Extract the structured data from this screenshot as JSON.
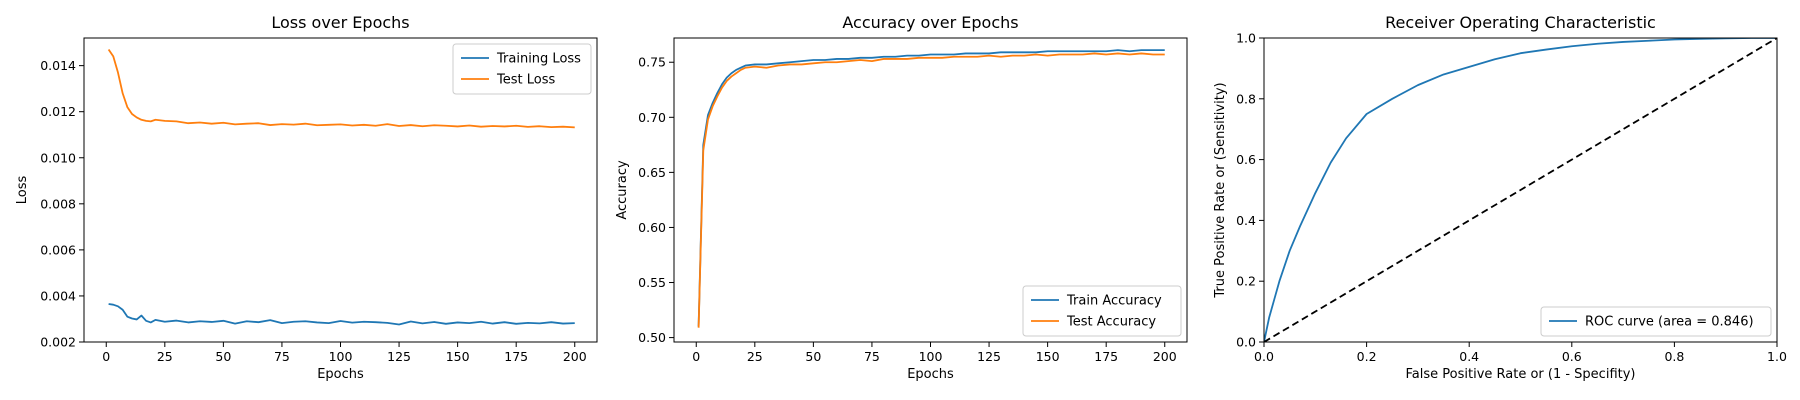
{
  "colors": {
    "blue": "#1f77b4",
    "orange": "#ff7f0e",
    "diag": "#000000"
  },
  "chart_data": [
    {
      "type": "line",
      "title": "Loss over Epochs",
      "xlabel": "Epochs",
      "ylabel": "Loss",
      "xlim": [
        -9.5,
        209.5
      ],
      "ylim": [
        0.002,
        0.0152
      ],
      "xticks": [
        0,
        25,
        50,
        75,
        100,
        125,
        150,
        175,
        200
      ],
      "xtick_labels": [
        "0",
        "25",
        "50",
        "75",
        "100",
        "125",
        "150",
        "175",
        "200"
      ],
      "yticks": [
        0.002,
        0.004,
        0.006,
        0.008,
        0.01,
        0.012,
        0.014
      ],
      "ytick_labels": [
        "0.002",
        "0.004",
        "0.006",
        "0.008",
        "0.010",
        "0.012",
        "0.014"
      ],
      "legend_position": "top-right",
      "series": [
        {
          "name": "Training Loss",
          "color": "blue",
          "x": [
            1,
            3,
            5,
            7,
            9,
            11,
            13,
            15,
            17,
            19,
            21,
            25,
            30,
            35,
            40,
            45,
            50,
            55,
            60,
            65,
            70,
            75,
            80,
            85,
            90,
            95,
            100,
            105,
            110,
            115,
            120,
            125,
            130,
            135,
            140,
            145,
            150,
            155,
            160,
            165,
            170,
            175,
            180,
            185,
            190,
            195,
            200
          ],
          "y": [
            0.00365,
            0.00362,
            0.00355,
            0.0034,
            0.0031,
            0.00302,
            0.00298,
            0.00315,
            0.00292,
            0.00285,
            0.00296,
            0.00288,
            0.00293,
            0.00285,
            0.0029,
            0.00287,
            0.00292,
            0.0028,
            0.0029,
            0.00286,
            0.00295,
            0.00282,
            0.00288,
            0.0029,
            0.00285,
            0.00282,
            0.00291,
            0.00284,
            0.00288,
            0.00286,
            0.00283,
            0.00276,
            0.00289,
            0.00281,
            0.00287,
            0.00279,
            0.00285,
            0.00282,
            0.00288,
            0.0028,
            0.00286,
            0.00279,
            0.00283,
            0.00281,
            0.00286,
            0.0028,
            0.00282
          ]
        },
        {
          "name": "Test Loss",
          "color": "orange",
          "x": [
            1,
            3,
            5,
            7,
            9,
            11,
            13,
            15,
            17,
            19,
            21,
            25,
            30,
            35,
            40,
            45,
            50,
            55,
            60,
            65,
            70,
            75,
            80,
            85,
            90,
            95,
            100,
            105,
            110,
            115,
            120,
            125,
            130,
            135,
            140,
            145,
            150,
            155,
            160,
            165,
            170,
            175,
            180,
            185,
            190,
            195,
            200
          ],
          "y": [
            0.0147,
            0.0144,
            0.0137,
            0.0128,
            0.0122,
            0.0119,
            0.01175,
            0.01165,
            0.0116,
            0.01158,
            0.01165,
            0.0116,
            0.01158,
            0.0115,
            0.01153,
            0.01148,
            0.01152,
            0.01145,
            0.01148,
            0.0115,
            0.01142,
            0.01146,
            0.01144,
            0.01148,
            0.01141,
            0.01143,
            0.01145,
            0.0114,
            0.01143,
            0.01139,
            0.01146,
            0.01138,
            0.01142,
            0.01137,
            0.01141,
            0.01139,
            0.01136,
            0.0114,
            0.01135,
            0.01138,
            0.01136,
            0.01139,
            0.01134,
            0.01137,
            0.01133,
            0.01135,
            0.01132
          ]
        }
      ]
    },
    {
      "type": "line",
      "title": "Accuracy over Epochs",
      "xlabel": "Epochs",
      "ylabel": "Accuracy",
      "xlim": [
        -9.5,
        209.5
      ],
      "ylim": [
        0.496,
        0.772
      ],
      "xticks": [
        0,
        25,
        50,
        75,
        100,
        125,
        150,
        175,
        200
      ],
      "xtick_labels": [
        "0",
        "25",
        "50",
        "75",
        "100",
        "125",
        "150",
        "175",
        "200"
      ],
      "yticks": [
        0.5,
        0.55,
        0.6,
        0.65,
        0.7,
        0.75
      ],
      "ytick_labels": [
        "0.50",
        "0.55",
        "0.60",
        "0.65",
        "0.70",
        "0.75"
      ],
      "legend_position": "lower-right",
      "series": [
        {
          "name": "Train Accuracy",
          "color": "blue",
          "x": [
            1,
            3,
            5,
            7,
            9,
            11,
            13,
            15,
            17,
            19,
            21,
            25,
            30,
            35,
            40,
            45,
            50,
            55,
            60,
            65,
            70,
            75,
            80,
            85,
            90,
            95,
            100,
            105,
            110,
            115,
            120,
            125,
            130,
            135,
            140,
            145,
            150,
            155,
            160,
            165,
            170,
            175,
            180,
            185,
            190,
            195,
            200
          ],
          "y": [
            0.51,
            0.675,
            0.702,
            0.713,
            0.722,
            0.73,
            0.736,
            0.74,
            0.743,
            0.745,
            0.747,
            0.748,
            0.748,
            0.749,
            0.75,
            0.751,
            0.752,
            0.752,
            0.753,
            0.753,
            0.754,
            0.754,
            0.755,
            0.755,
            0.756,
            0.756,
            0.757,
            0.757,
            0.757,
            0.758,
            0.758,
            0.758,
            0.759,
            0.759,
            0.759,
            0.759,
            0.76,
            0.76,
            0.76,
            0.76,
            0.76,
            0.76,
            0.761,
            0.76,
            0.761,
            0.761,
            0.761
          ]
        },
        {
          "name": "Test Accuracy",
          "color": "orange",
          "x": [
            1,
            3,
            5,
            7,
            9,
            11,
            13,
            15,
            17,
            19,
            21,
            25,
            30,
            35,
            40,
            45,
            50,
            55,
            60,
            65,
            70,
            75,
            80,
            85,
            90,
            95,
            100,
            105,
            110,
            115,
            120,
            125,
            130,
            135,
            140,
            145,
            150,
            155,
            160,
            165,
            170,
            175,
            180,
            185,
            190,
            195,
            200
          ],
          "y": [
            0.509,
            0.67,
            0.698,
            0.71,
            0.719,
            0.727,
            0.733,
            0.737,
            0.74,
            0.743,
            0.745,
            0.746,
            0.745,
            0.747,
            0.748,
            0.748,
            0.749,
            0.75,
            0.75,
            0.751,
            0.752,
            0.751,
            0.753,
            0.753,
            0.753,
            0.754,
            0.754,
            0.754,
            0.755,
            0.755,
            0.755,
            0.756,
            0.755,
            0.756,
            0.756,
            0.757,
            0.756,
            0.757,
            0.757,
            0.757,
            0.758,
            0.757,
            0.758,
            0.757,
            0.758,
            0.757,
            0.757
          ]
        }
      ]
    },
    {
      "type": "line",
      "title": "Receiver Operating Characteristic",
      "xlabel": "False Positive Rate or (1 - Specifity)",
      "ylabel": "True Positive Rate or (Sensitivity)",
      "xlim": [
        0.0,
        1.0
      ],
      "ylim": [
        0.0,
        1.0
      ],
      "xticks": [
        0.0,
        0.2,
        0.4,
        0.6,
        0.8,
        1.0
      ],
      "xtick_labels": [
        "0.0",
        "0.2",
        "0.4",
        "0.6",
        "0.8",
        "1.0"
      ],
      "yticks": [
        0.0,
        0.2,
        0.4,
        0.6,
        0.8,
        1.0
      ],
      "ytick_labels": [
        "0.0",
        "0.2",
        "0.4",
        "0.6",
        "0.8",
        "1.0"
      ],
      "legend_position": "lower-right",
      "series": [
        {
          "name": "ROC curve (area = 0.846)",
          "color": "blue",
          "x": [
            0.0,
            0.005,
            0.01,
            0.02,
            0.03,
            0.05,
            0.07,
            0.1,
            0.13,
            0.16,
            0.2,
            0.25,
            0.3,
            0.35,
            0.4,
            0.45,
            0.5,
            0.55,
            0.6,
            0.65,
            0.7,
            0.75,
            0.8,
            0.85,
            0.9,
            0.95,
            1.0
          ],
          "y": [
            0.0,
            0.04,
            0.08,
            0.14,
            0.2,
            0.3,
            0.38,
            0.49,
            0.59,
            0.67,
            0.75,
            0.8,
            0.845,
            0.88,
            0.905,
            0.93,
            0.95,
            0.962,
            0.973,
            0.981,
            0.987,
            0.991,
            0.995,
            0.997,
            0.999,
            1.0,
            1.0
          ]
        },
        {
          "name": "",
          "color": "diag",
          "dashed": true,
          "x": [
            0.0,
            1.0
          ],
          "y": [
            0.0,
            1.0
          ]
        }
      ]
    }
  ]
}
